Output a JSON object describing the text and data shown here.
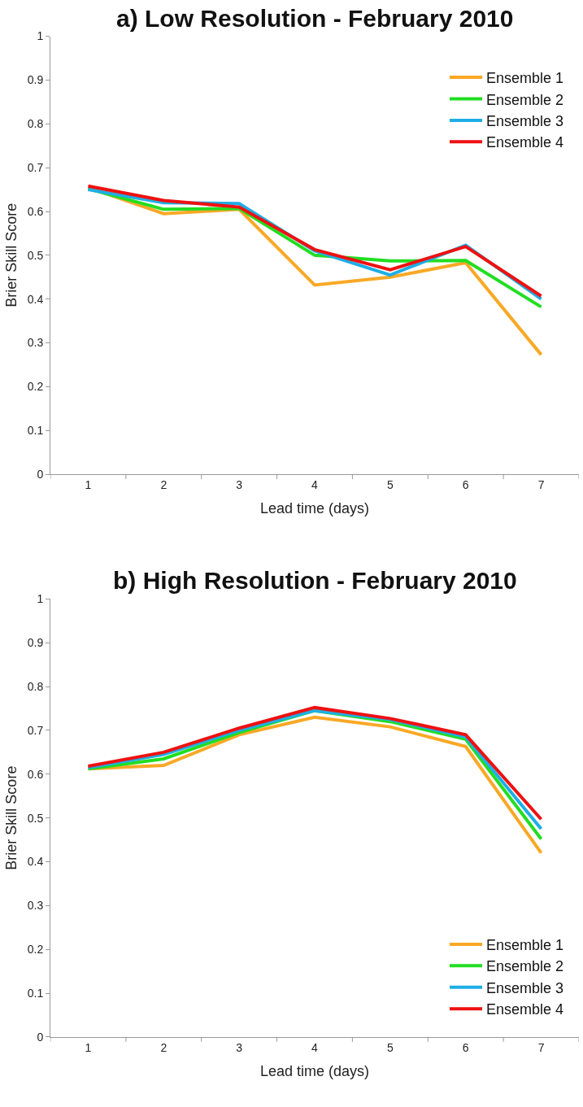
{
  "chart_data": [
    {
      "type": "line",
      "title": "a) Low Resolution - February 2010",
      "xlabel": "Lead time (days)",
      "ylabel": "Brier Skill Score",
      "categories": [
        "1",
        "2",
        "3",
        "4",
        "5",
        "6",
        "7"
      ],
      "ylim": [
        0,
        1
      ],
      "yticks": [
        0,
        0.1,
        0.2,
        0.3,
        0.4,
        0.5,
        0.6,
        0.7,
        0.8,
        0.9,
        1
      ],
      "grid": false,
      "legend": "top right",
      "marker": "none",
      "line_style": "solid",
      "series": [
        {
          "name": "Ensemble 1",
          "color": "#f9a825",
          "values": [
            0.655,
            0.595,
            0.605,
            0.432,
            0.45,
            0.483,
            0.273
          ]
        },
        {
          "name": "Ensemble 2",
          "color": "#22dd22",
          "values": [
            0.652,
            0.605,
            0.607,
            0.5,
            0.487,
            0.488,
            0.382
          ]
        },
        {
          "name": "Ensemble 3",
          "color": "#1eaee6",
          "values": [
            0.65,
            0.62,
            0.618,
            0.51,
            0.455,
            0.523,
            0.4
          ]
        },
        {
          "name": "Ensemble 4",
          "color": "#ee1111",
          "values": [
            0.658,
            0.625,
            0.61,
            0.513,
            0.467,
            0.52,
            0.407
          ]
        }
      ]
    },
    {
      "type": "line",
      "title": "b) High Resolution - February 2010",
      "xlabel": "Lead time (days)",
      "ylabel": "Brier Skill Score",
      "categories": [
        "1",
        "2",
        "3",
        "4",
        "5",
        "6",
        "7"
      ],
      "ylim": [
        0,
        1
      ],
      "yticks": [
        0,
        0.1,
        0.2,
        0.3,
        0.4,
        0.5,
        0.6,
        0.7,
        0.8,
        0.9,
        1
      ],
      "grid": false,
      "legend": "bottom right",
      "marker": "none",
      "line_style": "solid",
      "series": [
        {
          "name": "Ensemble 1",
          "color": "#f9a825",
          "values": [
            0.612,
            0.62,
            0.69,
            0.73,
            0.708,
            0.663,
            0.42
          ]
        },
        {
          "name": "Ensemble 2",
          "color": "#22dd22",
          "values": [
            0.612,
            0.635,
            0.695,
            0.745,
            0.72,
            0.68,
            0.452
          ]
        },
        {
          "name": "Ensemble 3",
          "color": "#1eaee6",
          "values": [
            0.615,
            0.645,
            0.7,
            0.745,
            0.725,
            0.685,
            0.475
          ]
        },
        {
          "name": "Ensemble 4",
          "color": "#ee1111",
          "values": [
            0.618,
            0.65,
            0.705,
            0.752,
            0.727,
            0.69,
            0.497
          ]
        }
      ]
    }
  ]
}
